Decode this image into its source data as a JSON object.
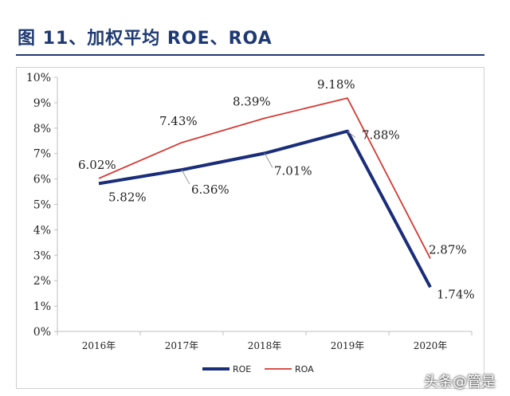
{
  "title": "图 11、加权平均 ROE、ROA",
  "watermark": "头条@管是",
  "colors": {
    "roe": "#1a2d7a",
    "roa": "#d33a35",
    "axis": "#bfbfbf",
    "title": "#1f3a73"
  },
  "chart_data": {
    "type": "line",
    "categories": [
      "2016年",
      "2017年",
      "2018年",
      "2019年",
      "2020年"
    ],
    "y_ticks": [
      "0%",
      "1%",
      "2%",
      "3%",
      "4%",
      "5%",
      "6%",
      "7%",
      "8%",
      "9%",
      "10%"
    ],
    "ylim": [
      0,
      10
    ],
    "grid": false,
    "legend": "bottom",
    "series": [
      {
        "name": "ROE",
        "values": [
          5.82,
          6.36,
          7.01,
          7.88,
          1.74
        ],
        "labels": [
          "5.82%",
          "6.36%",
          "7.01%",
          "7.88%",
          "1.74%"
        ]
      },
      {
        "name": "ROA",
        "values": [
          6.02,
          7.43,
          8.39,
          9.18,
          2.87
        ],
        "labels": [
          "6.02%",
          "7.43%",
          "8.39%",
          "9.18%",
          "2.87%"
        ]
      }
    ]
  }
}
